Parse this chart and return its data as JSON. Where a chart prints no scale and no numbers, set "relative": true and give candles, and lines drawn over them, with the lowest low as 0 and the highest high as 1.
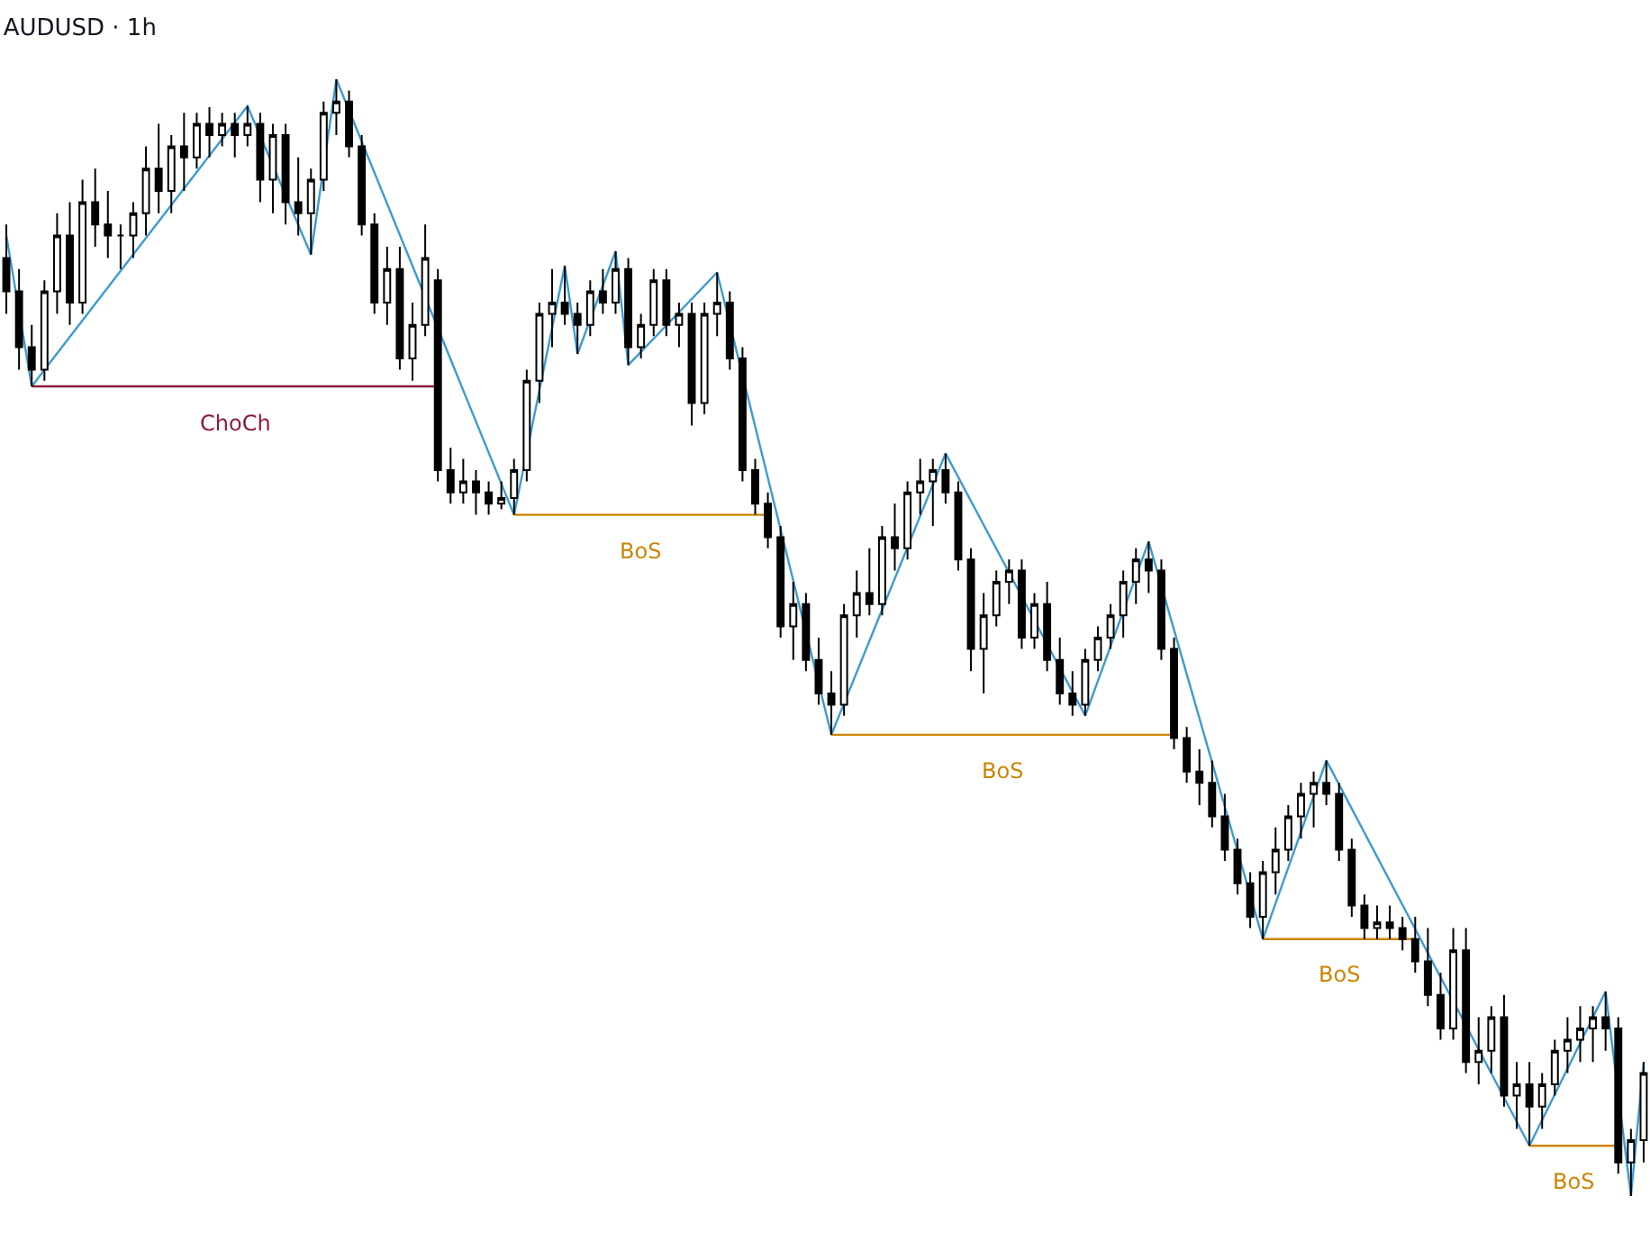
{
  "chart_data": {
    "type": "candlestick",
    "title": "AUDUSD · 1h",
    "relative": true,
    "categories": [
      null,
      null,
      null,
      null,
      null,
      null,
      null,
      null,
      null,
      null,
      null,
      null,
      null,
      null,
      null,
      null,
      null,
      null,
      null,
      null,
      null,
      null,
      null,
      null,
      null,
      null,
      null,
      null,
      null,
      null,
      null,
      null,
      null,
      null,
      null,
      null,
      null,
      null,
      null,
      null,
      null,
      null,
      null,
      null,
      null,
      null,
      null,
      null,
      null,
      null,
      null,
      null,
      null,
      null,
      null,
      null,
      null,
      null,
      null,
      null,
      null,
      null,
      null,
      null,
      null,
      null,
      null,
      null,
      null,
      null,
      null,
      null,
      null,
      null,
      null,
      null,
      null,
      null,
      null,
      null,
      null,
      null,
      null,
      null,
      null,
      null,
      null,
      null,
      null,
      null,
      null,
      null,
      null,
      null,
      null,
      null,
      null,
      null,
      null,
      null,
      null,
      null,
      null,
      null,
      null,
      null,
      null,
      null,
      null,
      null,
      null,
      null,
      null,
      null,
      null,
      null,
      null,
      null,
      null,
      null,
      null,
      null,
      null,
      null,
      null,
      null,
      null,
      null,
      null,
      null
    ],
    "series": [
      {
        "color": "#000000",
        "ohlc": [
          [
            0.84,
            0.87,
            0.79,
            0.81
          ],
          [
            0.81,
            0.83,
            0.74,
            0.76
          ],
          [
            0.76,
            0.78,
            0.725,
            0.74
          ],
          [
            0.74,
            0.82,
            0.73,
            0.81
          ],
          [
            0.81,
            0.88,
            0.79,
            0.86
          ],
          [
            0.86,
            0.89,
            0.78,
            0.8
          ],
          [
            0.8,
            0.91,
            0.79,
            0.89
          ],
          [
            0.89,
            0.92,
            0.85,
            0.87
          ],
          [
            0.87,
            0.9,
            0.84,
            0.86
          ],
          [
            0.86,
            0.87,
            0.83,
            0.86
          ],
          [
            0.86,
            0.89,
            0.84,
            0.88
          ],
          [
            0.88,
            0.94,
            0.86,
            0.92
          ],
          [
            0.92,
            0.96,
            0.88,
            0.9
          ],
          [
            0.9,
            0.95,
            0.88,
            0.94
          ],
          [
            0.94,
            0.97,
            0.9,
            0.93
          ],
          [
            0.93,
            0.97,
            0.92,
            0.96
          ],
          [
            0.96,
            0.975,
            0.93,
            0.95
          ],
          [
            0.95,
            0.97,
            0.94,
            0.96
          ],
          [
            0.96,
            0.97,
            0.93,
            0.95
          ],
          [
            0.95,
            0.976,
            0.94,
            0.96
          ],
          [
            0.96,
            0.97,
            0.89,
            0.91
          ],
          [
            0.91,
            0.96,
            0.88,
            0.95
          ],
          [
            0.95,
            0.96,
            0.87,
            0.89
          ],
          [
            0.89,
            0.93,
            0.86,
            0.88
          ],
          [
            0.88,
            0.92,
            0.843,
            0.91
          ],
          [
            0.91,
            0.98,
            0.9,
            0.97
          ],
          [
            0.97,
            1.0,
            0.95,
            0.98
          ],
          [
            0.98,
            0.99,
            0.93,
            0.94
          ],
          [
            0.94,
            0.95,
            0.86,
            0.87
          ],
          [
            0.87,
            0.88,
            0.79,
            0.8
          ],
          [
            0.8,
            0.85,
            0.78,
            0.83
          ],
          [
            0.83,
            0.85,
            0.74,
            0.75
          ],
          [
            0.75,
            0.8,
            0.73,
            0.78
          ],
          [
            0.78,
            0.87,
            0.77,
            0.84
          ],
          [
            0.82,
            0.83,
            0.64,
            0.65
          ],
          [
            0.65,
            0.67,
            0.62,
            0.63
          ],
          [
            0.63,
            0.66,
            0.62,
            0.64
          ],
          [
            0.64,
            0.65,
            0.61,
            0.63
          ],
          [
            0.63,
            0.64,
            0.61,
            0.62
          ],
          [
            0.62,
            0.64,
            0.615,
            0.625
          ],
          [
            0.625,
            0.66,
            0.61,
            0.65
          ],
          [
            0.65,
            0.74,
            0.64,
            0.73
          ],
          [
            0.73,
            0.8,
            0.71,
            0.79
          ],
          [
            0.79,
            0.83,
            0.76,
            0.8
          ],
          [
            0.8,
            0.833,
            0.78,
            0.79
          ],
          [
            0.79,
            0.8,
            0.754,
            0.78
          ],
          [
            0.78,
            0.82,
            0.77,
            0.81
          ],
          [
            0.81,
            0.83,
            0.79,
            0.8
          ],
          [
            0.8,
            0.846,
            0.79,
            0.83
          ],
          [
            0.83,
            0.84,
            0.744,
            0.76
          ],
          [
            0.76,
            0.79,
            0.75,
            0.78
          ],
          [
            0.78,
            0.83,
            0.77,
            0.82
          ],
          [
            0.82,
            0.83,
            0.77,
            0.78
          ],
          [
            0.78,
            0.8,
            0.76,
            0.79
          ],
          [
            0.79,
            0.8,
            0.69,
            0.71
          ],
          [
            0.71,
            0.8,
            0.7,
            0.79
          ],
          [
            0.79,
            0.827,
            0.77,
            0.8
          ],
          [
            0.8,
            0.81,
            0.74,
            0.75
          ],
          [
            0.75,
            0.76,
            0.64,
            0.65
          ],
          [
            0.65,
            0.66,
            0.61,
            0.62
          ],
          [
            0.62,
            0.63,
            0.58,
            0.59
          ],
          [
            0.59,
            0.6,
            0.5,
            0.51
          ],
          [
            0.51,
            0.55,
            0.48,
            0.53
          ],
          [
            0.53,
            0.54,
            0.47,
            0.48
          ],
          [
            0.48,
            0.5,
            0.44,
            0.45
          ],
          [
            0.45,
            0.47,
            0.413,
            0.44
          ],
          [
            0.44,
            0.53,
            0.43,
            0.52
          ],
          [
            0.52,
            0.56,
            0.5,
            0.54
          ],
          [
            0.54,
            0.58,
            0.52,
            0.53
          ],
          [
            0.53,
            0.6,
            0.52,
            0.59
          ],
          [
            0.59,
            0.62,
            0.56,
            0.58
          ],
          [
            0.58,
            0.64,
            0.57,
            0.63
          ],
          [
            0.63,
            0.66,
            0.61,
            0.64
          ],
          [
            0.64,
            0.66,
            0.6,
            0.65
          ],
          [
            0.65,
            0.665,
            0.62,
            0.63
          ],
          [
            0.63,
            0.64,
            0.56,
            0.57
          ],
          [
            0.57,
            0.58,
            0.47,
            0.49
          ],
          [
            0.49,
            0.54,
            0.45,
            0.52
          ],
          [
            0.52,
            0.56,
            0.51,
            0.55
          ],
          [
            0.55,
            0.57,
            0.53,
            0.56
          ],
          [
            0.56,
            0.57,
            0.49,
            0.5
          ],
          [
            0.5,
            0.54,
            0.49,
            0.53
          ],
          [
            0.53,
            0.55,
            0.47,
            0.48
          ],
          [
            0.48,
            0.5,
            0.44,
            0.45
          ],
          [
            0.45,
            0.47,
            0.43,
            0.44
          ],
          [
            0.44,
            0.49,
            0.43,
            0.48
          ],
          [
            0.48,
            0.51,
            0.47,
            0.5
          ],
          [
            0.5,
            0.53,
            0.49,
            0.52
          ],
          [
            0.52,
            0.56,
            0.5,
            0.55
          ],
          [
            0.55,
            0.58,
            0.53,
            0.57
          ],
          [
            0.57,
            0.586,
            0.54,
            0.56
          ],
          [
            0.56,
            0.57,
            0.48,
            0.49
          ],
          [
            0.49,
            0.5,
            0.4,
            0.41
          ],
          [
            0.41,
            0.42,
            0.37,
            0.38
          ],
          [
            0.38,
            0.4,
            0.35,
            0.37
          ],
          [
            0.37,
            0.39,
            0.33,
            0.34
          ],
          [
            0.34,
            0.36,
            0.3,
            0.31
          ],
          [
            0.31,
            0.32,
            0.27,
            0.28
          ],
          [
            0.28,
            0.29,
            0.24,
            0.25
          ],
          [
            0.25,
            0.3,
            0.23,
            0.29
          ],
          [
            0.29,
            0.33,
            0.27,
            0.31
          ],
          [
            0.31,
            0.35,
            0.3,
            0.34
          ],
          [
            0.34,
            0.37,
            0.32,
            0.36
          ],
          [
            0.36,
            0.38,
            0.33,
            0.37
          ],
          [
            0.37,
            0.39,
            0.35,
            0.36
          ],
          [
            0.36,
            0.37,
            0.3,
            0.31
          ],
          [
            0.31,
            0.32,
            0.25,
            0.26
          ],
          [
            0.26,
            0.27,
            0.23,
            0.24
          ],
          [
            0.24,
            0.26,
            0.23,
            0.245
          ],
          [
            0.245,
            0.26,
            0.23,
            0.24
          ],
          [
            0.24,
            0.25,
            0.22,
            0.23
          ],
          [
            0.23,
            0.25,
            0.2,
            0.21
          ],
          [
            0.21,
            0.24,
            0.17,
            0.18
          ],
          [
            0.18,
            0.2,
            0.14,
            0.15
          ],
          [
            0.15,
            0.24,
            0.14,
            0.22
          ],
          [
            0.22,
            0.24,
            0.11,
            0.12
          ],
          [
            0.12,
            0.16,
            0.1,
            0.13
          ],
          [
            0.13,
            0.17,
            0.11,
            0.16
          ],
          [
            0.16,
            0.18,
            0.08,
            0.09
          ],
          [
            0.09,
            0.12,
            0.06,
            0.1
          ],
          [
            0.1,
            0.12,
            0.045,
            0.08
          ],
          [
            0.08,
            0.11,
            0.06,
            0.1
          ],
          [
            0.1,
            0.14,
            0.09,
            0.13
          ],
          [
            0.13,
            0.16,
            0.11,
            0.14
          ],
          [
            0.14,
            0.17,
            0.12,
            0.15
          ],
          [
            0.15,
            0.17,
            0.12,
            0.16
          ],
          [
            0.16,
            0.183,
            0.13,
            0.15
          ],
          [
            0.15,
            0.16,
            0.02,
            0.03
          ],
          [
            0.03,
            0.06,
            0.0,
            0.05
          ],
          [
            0.05,
            0.12,
            0.03,
            0.11
          ]
        ]
      },
      {
        "type": "line",
        "color": "#3d9bd1",
        "values": [
          0.86,
          null,
          0.725,
          null,
          null,
          null,
          null,
          null,
          null,
          null,
          null,
          null,
          null,
          null,
          null,
          null,
          null,
          null,
          null,
          0.976,
          null,
          null,
          null,
          null,
          0.843,
          null,
          1.0,
          null,
          null,
          null,
          null,
          null,
          null,
          null,
          null,
          null,
          null,
          null,
          null,
          null,
          0.61,
          null,
          null,
          null,
          0.833,
          0.754,
          null,
          null,
          0.846,
          0.744,
          null,
          null,
          null,
          null,
          null,
          null,
          0.827,
          null,
          null,
          null,
          null,
          null,
          null,
          null,
          null,
          0.413,
          null,
          null,
          null,
          null,
          null,
          null,
          null,
          null,
          0.665,
          null,
          null,
          null,
          null,
          null,
          null,
          null,
          null,
          null,
          null,
          0.43,
          null,
          null,
          null,
          null,
          0.586,
          null,
          null,
          null,
          null,
          null,
          null,
          null,
          null,
          0.23,
          null,
          null,
          null,
          null,
          0.39,
          null,
          null,
          null,
          null,
          null,
          null,
          null,
          null,
          null,
          null,
          null,
          null,
          null,
          null,
          null,
          0.045,
          null,
          null,
          null,
          null,
          null,
          0.183,
          null,
          0.0,
          0.12
        ]
      },
      {
        "type": "line",
        "name": "ChoCh",
        "color": "#8b1a3f",
        "values": [
          null,
          null,
          0.725,
          null,
          null,
          null,
          null,
          null,
          null,
          null,
          null,
          null,
          null,
          null,
          null,
          null,
          null,
          null,
          null,
          null,
          null,
          null,
          null,
          null,
          null,
          null,
          null,
          null,
          null,
          null,
          null,
          null,
          null,
          null,
          0.725,
          null,
          null,
          null,
          null,
          null,
          null,
          null,
          null,
          null,
          null,
          null,
          null,
          null,
          null,
          null,
          null,
          null,
          null,
          null,
          null,
          null,
          null,
          null,
          null,
          null,
          null,
          null,
          null,
          null,
          null,
          null,
          null,
          null,
          null,
          null,
          null,
          null,
          null,
          null,
          null,
          null,
          null,
          null,
          null,
          null,
          null,
          null,
          null,
          null,
          null,
          null,
          null,
          null,
          null,
          null,
          null,
          null,
          null,
          null,
          null,
          null,
          null,
          null,
          null,
          null,
          null,
          null,
          null,
          null,
          null,
          null,
          null,
          null,
          null,
          null,
          null,
          null,
          null,
          null,
          null,
          null,
          null,
          null,
          null,
          null,
          null,
          null,
          null,
          null,
          null,
          null,
          null,
          null,
          null,
          null
        ]
      },
      {
        "type": "line",
        "name": "BoS",
        "color": "#cc8400",
        "values": [
          null,
          null,
          null,
          null,
          null,
          null,
          null,
          null,
          null,
          null,
          null,
          null,
          null,
          null,
          null,
          null,
          null,
          null,
          null,
          null,
          null,
          null,
          null,
          null,
          null,
          null,
          null,
          null,
          null,
          null,
          null,
          null,
          null,
          null,
          null,
          null,
          null,
          null,
          null,
          null,
          0.61,
          null,
          null,
          null,
          null,
          null,
          null,
          null,
          null,
          null,
          null,
          null,
          null,
          null,
          null,
          null,
          null,
          null,
          null,
          null,
          0.61,
          null,
          null,
          null,
          null,
          null,
          null,
          null,
          null,
          null,
          null,
          null,
          null,
          null,
          null,
          null,
          null,
          null,
          null,
          null,
          null,
          null,
          null,
          null,
          null,
          null,
          null,
          null,
          null,
          null,
          null,
          null,
          null,
          null,
          null,
          null,
          null,
          null,
          null,
          null,
          null,
          null,
          null,
          null,
          null,
          null,
          null,
          null,
          null,
          null,
          null,
          null,
          null,
          null,
          null,
          null,
          null,
          null,
          null,
          null,
          null,
          null,
          null,
          null,
          null,
          null,
          null,
          null,
          null,
          null
        ]
      },
      {
        "type": "line",
        "name": "BoS",
        "color": "#cc8400",
        "values": [
          null,
          null,
          null,
          null,
          null,
          null,
          null,
          null,
          null,
          null,
          null,
          null,
          null,
          null,
          null,
          null,
          null,
          null,
          null,
          null,
          null,
          null,
          null,
          null,
          null,
          null,
          null,
          null,
          null,
          null,
          null,
          null,
          null,
          null,
          null,
          null,
          null,
          null,
          null,
          null,
          null,
          null,
          null,
          null,
          null,
          null,
          null,
          null,
          null,
          null,
          null,
          null,
          null,
          null,
          null,
          null,
          null,
          null,
          null,
          null,
          null,
          null,
          null,
          null,
          null,
          0.413,
          null,
          null,
          null,
          null,
          null,
          null,
          null,
          null,
          null,
          null,
          null,
          null,
          null,
          null,
          null,
          null,
          null,
          null,
          null,
          null,
          null,
          null,
          null,
          null,
          null,
          null,
          0.413,
          null,
          null,
          null,
          null,
          null,
          null,
          null,
          null,
          null,
          null,
          null,
          null,
          null,
          null,
          null,
          null,
          null,
          null,
          null,
          null,
          null,
          null,
          null,
          null,
          null,
          null,
          null,
          null,
          null,
          null,
          null,
          null,
          null,
          null,
          null,
          null,
          null
        ]
      },
      {
        "type": "line",
        "name": "BoS",
        "color": "#cc8400",
        "values": [
          null,
          null,
          null,
          null,
          null,
          null,
          null,
          null,
          null,
          null,
          null,
          null,
          null,
          null,
          null,
          null,
          null,
          null,
          null,
          null,
          null,
          null,
          null,
          null,
          null,
          null,
          null,
          null,
          null,
          null,
          null,
          null,
          null,
          null,
          null,
          null,
          null,
          null,
          null,
          null,
          null,
          null,
          null,
          null,
          null,
          null,
          null,
          null,
          null,
          null,
          null,
          null,
          null,
          null,
          null,
          null,
          null,
          null,
          null,
          null,
          null,
          null,
          null,
          null,
          null,
          null,
          null,
          null,
          null,
          null,
          null,
          null,
          null,
          null,
          null,
          null,
          null,
          null,
          null,
          null,
          null,
          null,
          null,
          null,
          null,
          null,
          null,
          null,
          null,
          null,
          null,
          null,
          null,
          null,
          null,
          null,
          null,
          null,
          null,
          0.23,
          null,
          null,
          null,
          null,
          null,
          null,
          null,
          null,
          null,
          null,
          null,
          0.23,
          null,
          null,
          null,
          null,
          null,
          null,
          null,
          null,
          null,
          null,
          null,
          null,
          null,
          null,
          null,
          null,
          null,
          null
        ]
      },
      {
        "type": "line",
        "name": "BoS",
        "color": "#cc8400",
        "values": [
          null,
          null,
          null,
          null,
          null,
          null,
          null,
          null,
          null,
          null,
          null,
          null,
          null,
          null,
          null,
          null,
          null,
          null,
          null,
          null,
          null,
          null,
          null,
          null,
          null,
          null,
          null,
          null,
          null,
          null,
          null,
          null,
          null,
          null,
          null,
          null,
          null,
          null,
          null,
          null,
          null,
          null,
          null,
          null,
          null,
          null,
          null,
          null,
          null,
          null,
          null,
          null,
          null,
          null,
          null,
          null,
          null,
          null,
          null,
          null,
          null,
          null,
          null,
          null,
          null,
          null,
          null,
          null,
          null,
          null,
          null,
          null,
          null,
          null,
          null,
          null,
          null,
          null,
          null,
          null,
          null,
          null,
          null,
          null,
          null,
          null,
          null,
          null,
          null,
          null,
          null,
          null,
          null,
          null,
          null,
          null,
          null,
          null,
          null,
          null,
          null,
          null,
          null,
          null,
          null,
          null,
          null,
          null,
          null,
          null,
          null,
          null,
          null,
          null,
          null,
          null,
          null,
          null,
          null,
          null,
          0.045,
          null,
          null,
          null,
          null,
          null,
          null,
          0.045,
          null,
          null
        ]
      }
    ]
  }
}
